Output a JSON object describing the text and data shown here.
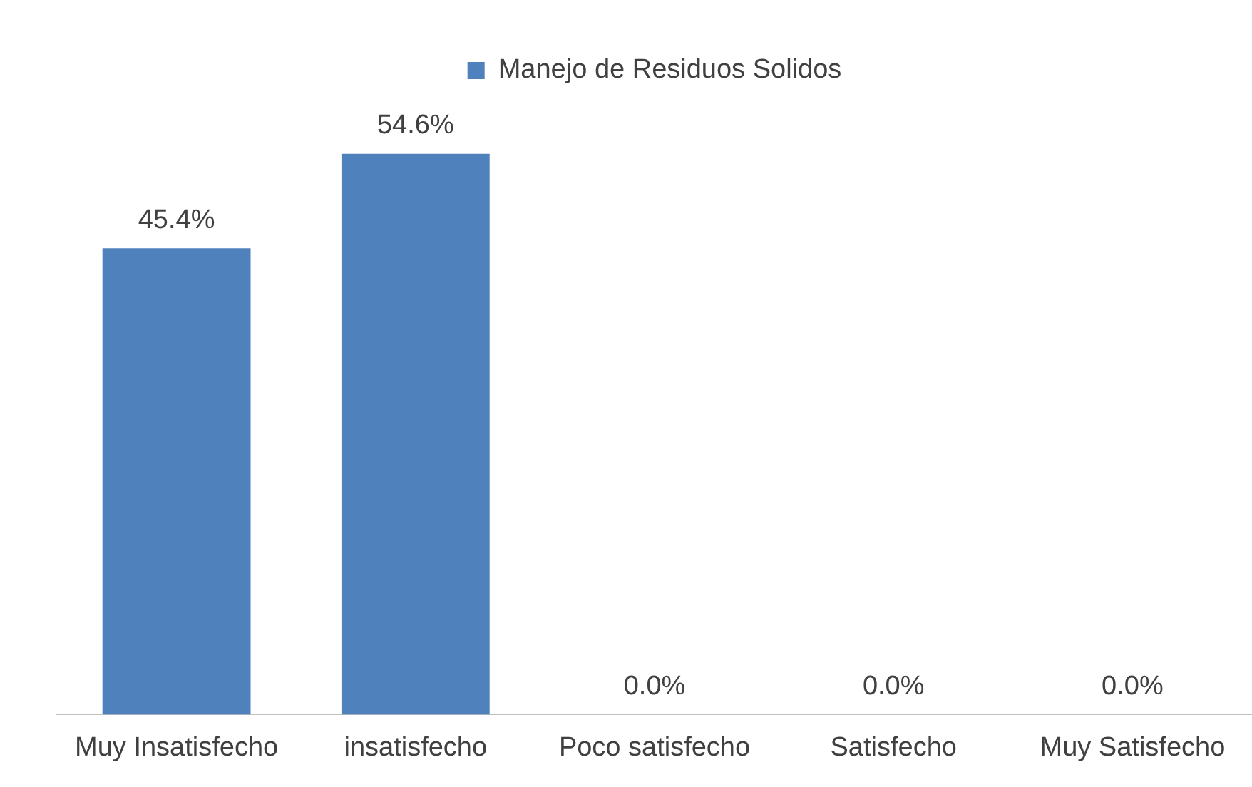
{
  "chart_data": {
    "type": "bar",
    "categories": [
      "Muy Insatisfecho",
      "insatisfecho",
      "Poco satisfecho",
      "Satisfecho",
      "Muy Satisfecho"
    ],
    "series": [
      {
        "name": "Manejo de Residuos Solidos",
        "color": "#4f81bd",
        "values": [
          45.4,
          54.6,
          0,
          0,
          0
        ],
        "value_labels": [
          "45.4%",
          "54.6%",
          "0.0%",
          "0.0%",
          "0.0%"
        ]
      }
    ],
    "legend": "top",
    "grid": false,
    "tick_labels": "x"
  }
}
